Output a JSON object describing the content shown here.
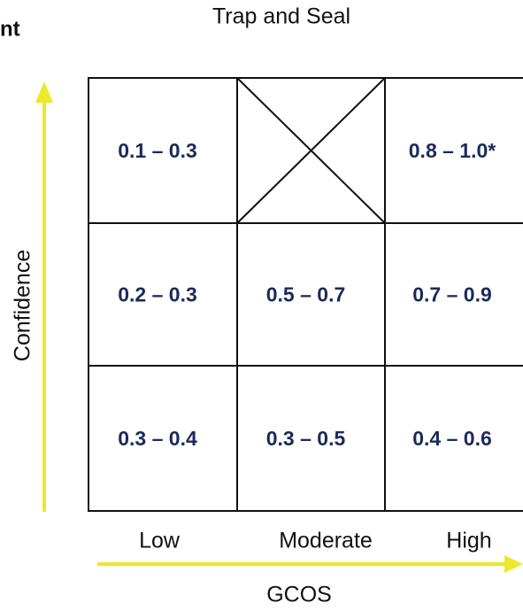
{
  "header": {
    "fragment": "nt",
    "title": "Trap and Seal"
  },
  "y_axis": {
    "label": "Confidence"
  },
  "x_axis": {
    "label": "GCOS",
    "levels": [
      "Low",
      "Moderate",
      "High"
    ]
  },
  "grid": {
    "rows": [
      [
        "0.1 – 0.3",
        null,
        "0.8 – 1.0*"
      ],
      [
        "0.2 – 0.3",
        "0.5 – 0.7",
        "0.7 – 0.9"
      ],
      [
        "0.3 – 0.4",
        "0.3 – 0.5",
        "0.4 – 0.6"
      ]
    ]
  }
}
